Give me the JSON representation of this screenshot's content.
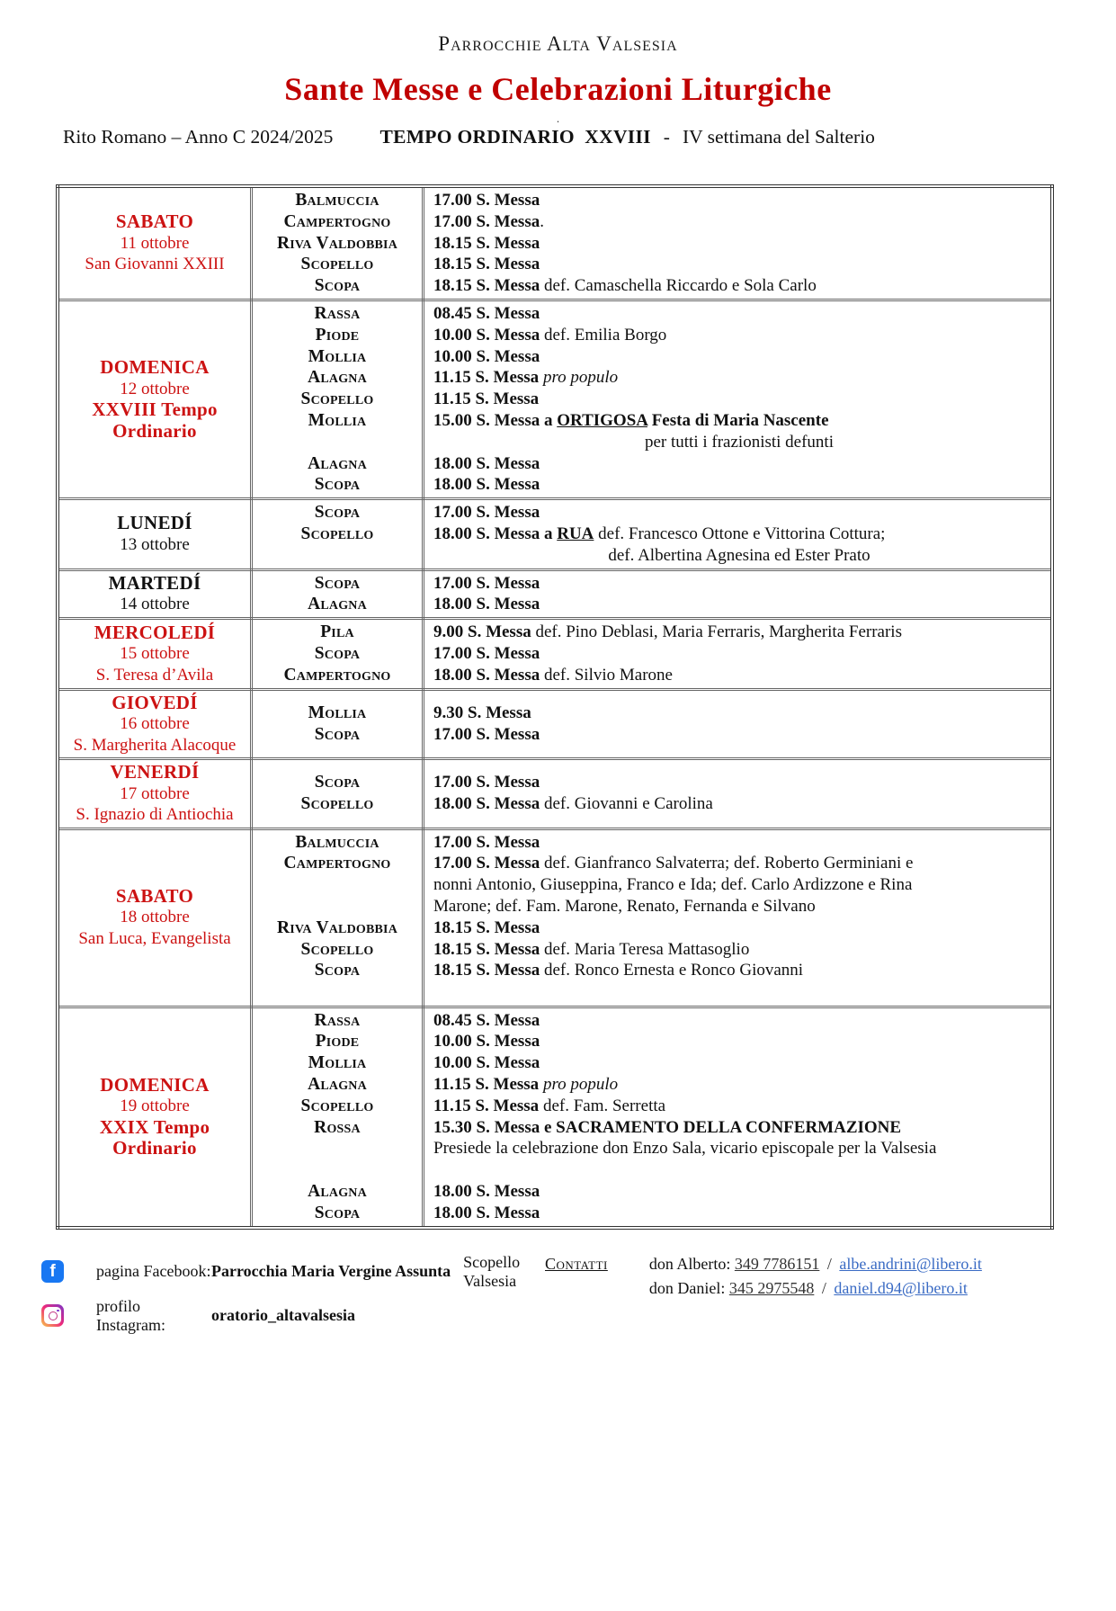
{
  "colors": {
    "accent_red": "#c00000",
    "day_red": "#cc1212",
    "link_blue": "#3a6bc4",
    "facebook_blue": "#1877f2"
  },
  "header": {
    "org": "Parrocchie Alta Valsesia",
    "title": "Sante Messe e Celebrazioni Liturgiche",
    "dot": ".",
    "rite": "Rito Romano – Anno C 2024/2025",
    "season_bold": "TEMPO ORDINARIO  XXVIII",
    "season_sep": "-",
    "season_rest": "IV settimana del Salterio"
  },
  "table": {
    "rows": [
      {
        "color": "red",
        "valign": "top",
        "day_lines": [
          {
            "t": "SABATO",
            "style": "day-name"
          },
          {
            "t": "11 ottobre",
            "style": "date"
          },
          {
            "t": "San Giovanni XXIII",
            "style": "date"
          }
        ],
        "places": [
          "Balmuccia",
          "Campertogno",
          "Riva Valdobbia",
          "Scopello",
          "Scopa"
        ],
        "entries": [
          {
            "seg": [
              [
                "17.00 S. Messa",
                "b"
              ]
            ]
          },
          {
            "seg": [
              [
                "17.00 S. Messa",
                "b"
              ],
              [
                ".",
                ""
              ]
            ]
          },
          {
            "seg": [
              [
                "18.15 S. Messa",
                "b"
              ]
            ]
          },
          {
            "seg": [
              [
                "18.15 S. Messa",
                "b"
              ]
            ]
          },
          {
            "seg": [
              [
                "18.15 S. Messa",
                "b"
              ],
              [
                " def. Camaschella Riccardo e Sola Carlo",
                ""
              ]
            ]
          }
        ]
      },
      {
        "color": "red",
        "valign": "top",
        "day_lines": [
          {
            "t": "DOMENICA",
            "style": "day-name"
          },
          {
            "t": "12 ottobre",
            "style": "date"
          },
          {
            "t": "XXVIII Tempo",
            "style": "day-name"
          },
          {
            "t": "Ordinario",
            "style": "day-name"
          }
        ],
        "places": [
          "Rassa",
          "Piode",
          "Mollia",
          "Alagna",
          "Scopello",
          "Mollia",
          "",
          "Alagna",
          "Scopa"
        ],
        "entries": [
          {
            "seg": [
              [
                "08.45 S. Messa",
                "b"
              ]
            ]
          },
          {
            "seg": [
              [
                "10.00 S. Messa",
                "b"
              ],
              [
                " def. Emilia Borgo",
                ""
              ]
            ]
          },
          {
            "seg": [
              [
                "10.00 S. Messa",
                "b"
              ]
            ]
          },
          {
            "seg": [
              [
                "11.15 S. Messa",
                "b"
              ],
              [
                " ",
                ""
              ],
              [
                "pro populo",
                "i"
              ]
            ]
          },
          {
            "seg": [
              [
                "11.15 S. Messa",
                "b"
              ]
            ]
          },
          {
            "seg": [
              [
                "15.00 S. Messa a ",
                "b"
              ],
              [
                "ORTIGOSA",
                "bu"
              ],
              [
                " Festa di Maria Nascente",
                "b"
              ]
            ]
          },
          {
            "seg": [
              [
                "per tutti i frazionisti defunti",
                ""
              ]
            ],
            "align": "center"
          },
          {
            "seg": [
              [
                "18.00 S. Messa",
                "b"
              ]
            ]
          },
          {
            "seg": [
              [
                "18.00 S. Messa",
                "b"
              ]
            ]
          }
        ]
      },
      {
        "color": "black",
        "valign": "top",
        "day_lines": [
          {
            "t": "LUNEDÍ",
            "style": "day-name"
          },
          {
            "t": "13 ottobre",
            "style": "date"
          }
        ],
        "places": [
          "Scopa",
          "Scopello",
          ""
        ],
        "entries": [
          {
            "seg": [
              [
                "17.00 S. Messa",
                "b"
              ]
            ]
          },
          {
            "seg": [
              [
                "18.00 S. Messa a ",
                "b"
              ],
              [
                "RUA",
                "bu"
              ],
              [
                " def. Francesco Ottone e Vittorina Cottura;",
                ""
              ]
            ]
          },
          {
            "seg": [
              [
                "def. Albertina Agnesina ed Ester Prato",
                ""
              ]
            ],
            "align": "center"
          }
        ]
      },
      {
        "color": "black",
        "valign": "top",
        "day_lines": [
          {
            "t": "MARTEDÍ",
            "style": "day-name"
          },
          {
            "t": "14 ottobre",
            "style": "date"
          }
        ],
        "places": [
          "Scopa",
          "Alagna"
        ],
        "entries": [
          {
            "seg": [
              [
                "17.00 S. Messa",
                "b"
              ]
            ]
          },
          {
            "seg": [
              [
                "18.00 S. Messa",
                "b"
              ]
            ]
          }
        ]
      },
      {
        "color": "red",
        "valign": "top",
        "day_lines": [
          {
            "t": "MERCOLEDÍ",
            "style": "day-name"
          },
          {
            "t": "15 ottobre",
            "style": "date"
          },
          {
            "t": "S. Teresa d’Avila",
            "style": "date"
          }
        ],
        "places": [
          "Pila",
          "Scopa",
          "Campertogno"
        ],
        "entries": [
          {
            "seg": [
              [
                "9.00 S. Messa",
                "b"
              ],
              [
                " def. Pino Deblasi, Maria Ferraris, Margherita Ferraris",
                ""
              ]
            ]
          },
          {
            "seg": [
              [
                "17.00 S. Messa",
                "b"
              ]
            ]
          },
          {
            "seg": [
              [
                "18.00 S. Messa",
                "b"
              ],
              [
                " def. Silvio Marone",
                ""
              ]
            ]
          }
        ]
      },
      {
        "color": "red",
        "valign": "middle",
        "day_lines": [
          {
            "t": "GIOVEDÍ",
            "style": "day-name"
          },
          {
            "t": "16 ottobre",
            "style": "date"
          },
          {
            "t": "S. Margherita Alacoque",
            "style": "date"
          }
        ],
        "places": [
          "Mollia",
          "Scopa"
        ],
        "entries": [
          {
            "seg": [
              [
                "9.30 S. Messa",
                "b"
              ]
            ]
          },
          {
            "seg": [
              [
                "17.00 S. Messa",
                "b"
              ]
            ]
          }
        ]
      },
      {
        "color": "red",
        "valign": "middle",
        "day_lines": [
          {
            "t": "VENERDÍ",
            "style": "day-name"
          },
          {
            "t": "17 ottobre",
            "style": "date"
          },
          {
            "t": "S. Ignazio di Antiochia",
            "style": "date"
          }
        ],
        "places": [
          "Scopa",
          "Scopello"
        ],
        "entries": [
          {
            "seg": [
              [
                "17.00 S. Messa",
                "b"
              ]
            ]
          },
          {
            "seg": [
              [
                "18.00 S. Messa",
                "b"
              ],
              [
                " def. Giovanni e Carolina",
                ""
              ]
            ]
          }
        ]
      },
      {
        "color": "red",
        "valign": "top",
        "day_lines": [
          {
            "t": "SABATO",
            "style": "day-name"
          },
          {
            "t": "18 ottobre",
            "style": "date"
          },
          {
            "t": "San Luca, Evangelista",
            "style": "date"
          }
        ],
        "places": [
          "Balmuccia",
          "Campertogno",
          "",
          "",
          "Riva Valdobbia",
          "Scopello",
          "Scopa"
        ],
        "entries": [
          {
            "seg": [
              [
                "17.00 S. Messa",
                "b"
              ]
            ]
          },
          {
            "seg": [
              [
                "17.00 S. Messa",
                "b"
              ],
              [
                " def. Gianfranco Salvaterra; def. Roberto Germiniani e",
                ""
              ]
            ]
          },
          {
            "seg": [
              [
                "nonni Antonio, Giuseppina, Franco e Ida; def. Carlo Ardizzone e Rina",
                ""
              ]
            ]
          },
          {
            "seg": [
              [
                "Marone; def. Fam. Marone, Renato, Fernanda e Silvano",
                ""
              ]
            ]
          },
          {
            "seg": [
              [
                "18.15 S. Messa",
                "b"
              ]
            ]
          },
          {
            "seg": [
              [
                "18.15 S. Messa",
                "b"
              ],
              [
                " def. Maria Teresa Mattasoglio",
                ""
              ]
            ]
          },
          {
            "seg": [
              [
                "18.15 S. Messa",
                "b"
              ],
              [
                " def. Ronco Ernesta e Ronco Giovanni",
                ""
              ]
            ]
          }
        ]
      },
      {
        "color": "red",
        "valign": "top",
        "day_lines": [
          {
            "t": "DOMENICA",
            "style": "day-name"
          },
          {
            "t": "19 ottobre",
            "style": "date"
          },
          {
            "t": "XXIX Tempo",
            "style": "day-name"
          },
          {
            "t": "Ordinario",
            "style": "day-name"
          }
        ],
        "places": [
          "Rassa",
          "Piode",
          "Mollia",
          "Alagna",
          "Scopello",
          "Rossa",
          "",
          "",
          "Alagna",
          "Scopa"
        ],
        "entries": [
          {
            "seg": [
              [
                "08.45 S. Messa",
                "b"
              ]
            ]
          },
          {
            "seg": [
              [
                "10.00 S. Messa",
                "b"
              ]
            ]
          },
          {
            "seg": [
              [
                "10.00 S. Messa",
                "b"
              ]
            ]
          },
          {
            "seg": [
              [
                "11.15 S. Messa",
                "b"
              ],
              [
                " ",
                ""
              ],
              [
                "pro populo",
                "i"
              ]
            ]
          },
          {
            "seg": [
              [
                "11.15 S. Messa",
                "b"
              ],
              [
                " def. Fam. Serretta",
                ""
              ]
            ]
          },
          {
            "seg": [
              [
                "15.30 S. Messa e SACRAMENTO DELLA CONFERMAZIONE",
                "b"
              ]
            ]
          },
          {
            "seg": [
              [
                "Presiede la celebrazione don Enzo Sala, vicario episcopale per la Valsesia",
                ""
              ]
            ]
          },
          {
            "seg": []
          },
          {
            "seg": [
              [
                "18.00 S. Messa",
                "b"
              ]
            ]
          },
          {
            "seg": [
              [
                "18.00 S. Messa",
                "b"
              ]
            ]
          }
        ]
      }
    ]
  },
  "footer": {
    "facebook_label": "pagina Facebook:",
    "facebook_bold": "Parrocchia Maria Vergine Assunta",
    "facebook_rest": "Scopello Valsesia",
    "facebook_icon_letter": "f",
    "instagram_label": "profilo Instagram:",
    "instagram_bold": "oratorio_altavalsesia",
    "contatti_label": "Contatti",
    "contact1_name": "don Alberto:",
    "contact1_phone": "349 7786151",
    "contact1_sep": "/",
    "contact1_email": "albe.andrini@libero.it",
    "contact2_name": "don Daniel:",
    "contact2_phone": "345 2975548",
    "contact2_sep": "/",
    "contact2_email": "daniel.d94@libero.it"
  }
}
